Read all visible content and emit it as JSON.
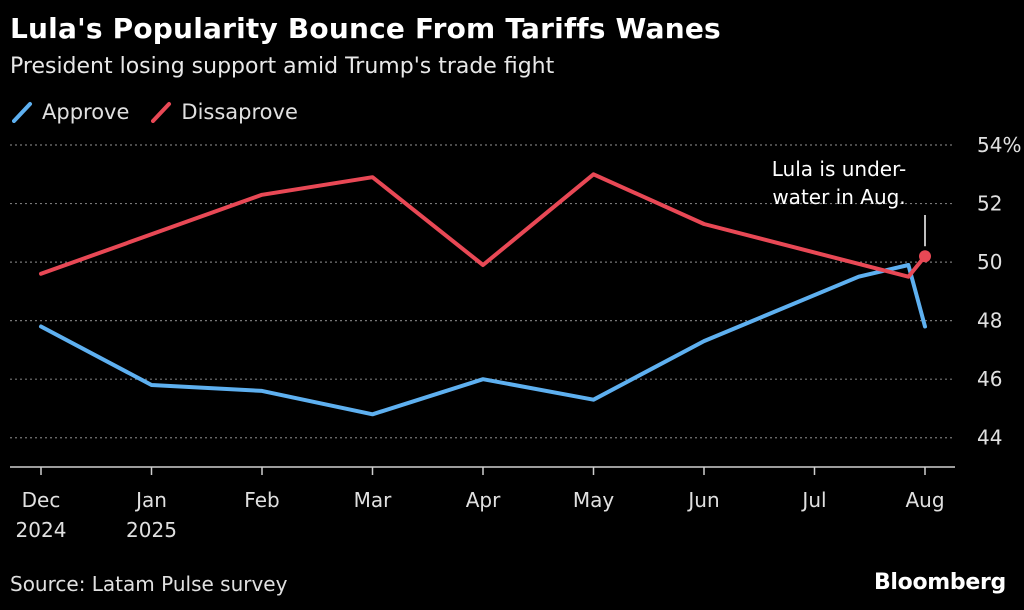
{
  "chart_data": {
    "type": "line",
    "title": "Lula's Popularity Bounce From Tariffs Wanes",
    "subtitle": "President losing support amid Trump's trade fight",
    "x_ticks": [
      {
        "x": 0,
        "line1": "Dec",
        "line2": "2024"
      },
      {
        "x": 1,
        "line1": "Jan",
        "line2": "2025"
      },
      {
        "x": 2,
        "line1": "Feb",
        "line2": ""
      },
      {
        "x": 3,
        "line1": "Mar",
        "line2": ""
      },
      {
        "x": 4,
        "line1": "Apr",
        "line2": ""
      },
      {
        "x": 5,
        "line1": "May",
        "line2": ""
      },
      {
        "x": 6,
        "line1": "Jun",
        "line2": ""
      },
      {
        "x": 7,
        "line1": "Jul",
        "line2": ""
      },
      {
        "x": 8,
        "line1": "Aug",
        "line2": ""
      }
    ],
    "y_ticks": [
      {
        "value": 44,
        "label": "44"
      },
      {
        "value": 46,
        "label": "46"
      },
      {
        "value": 48,
        "label": "48"
      },
      {
        "value": 50,
        "label": "50"
      },
      {
        "value": 52,
        "label": "52"
      },
      {
        "value": 54,
        "label": "54%"
      }
    ],
    "xlim": [
      0,
      8
    ],
    "ylim": [
      43,
      54
    ],
    "series": [
      {
        "name": "Approve",
        "color": "#5eb0f0",
        "points": [
          [
            0,
            47.8
          ],
          [
            1,
            45.8
          ],
          [
            2,
            45.6
          ],
          [
            3,
            44.8
          ],
          [
            4,
            46.0
          ],
          [
            5,
            45.3
          ],
          [
            6,
            47.3
          ],
          [
            7.4,
            49.5
          ],
          [
            7.85,
            49.9
          ],
          [
            8,
            47.8
          ]
        ]
      },
      {
        "name": "Dissaprove",
        "color": "#e84855",
        "points": [
          [
            0,
            49.6
          ],
          [
            2,
            52.3
          ],
          [
            3,
            52.9
          ],
          [
            4,
            49.9
          ],
          [
            5,
            53.0
          ],
          [
            6,
            51.3
          ],
          [
            7.85,
            49.5
          ],
          [
            8,
            50.2
          ]
        ]
      }
    ],
    "annotation": {
      "lines": [
        "Lula is under-",
        "water in Aug."
      ],
      "x": 8,
      "y": 50.2
    }
  },
  "footer": {
    "source": "Source: Latam Pulse survey",
    "brand": "Bloomberg"
  }
}
